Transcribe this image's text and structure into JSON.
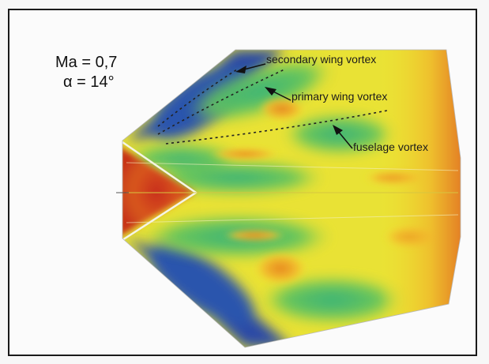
{
  "conditions": {
    "mach": "Ma = 0,7",
    "alpha": "α = 14°"
  },
  "annotations": {
    "secondary": "secondary wing vortex",
    "primary": "primary wing vortex",
    "fuselage": "fuselage vortex"
  },
  "palette": {
    "frame": "#1a1a1a",
    "low": "#2a4fa8",
    "mid_low": "#2fae8a",
    "mid": "#8fd04a",
    "mid_high": "#f3e12e",
    "high": "#d6351e"
  },
  "icons": [
    "arrow-icon"
  ]
}
